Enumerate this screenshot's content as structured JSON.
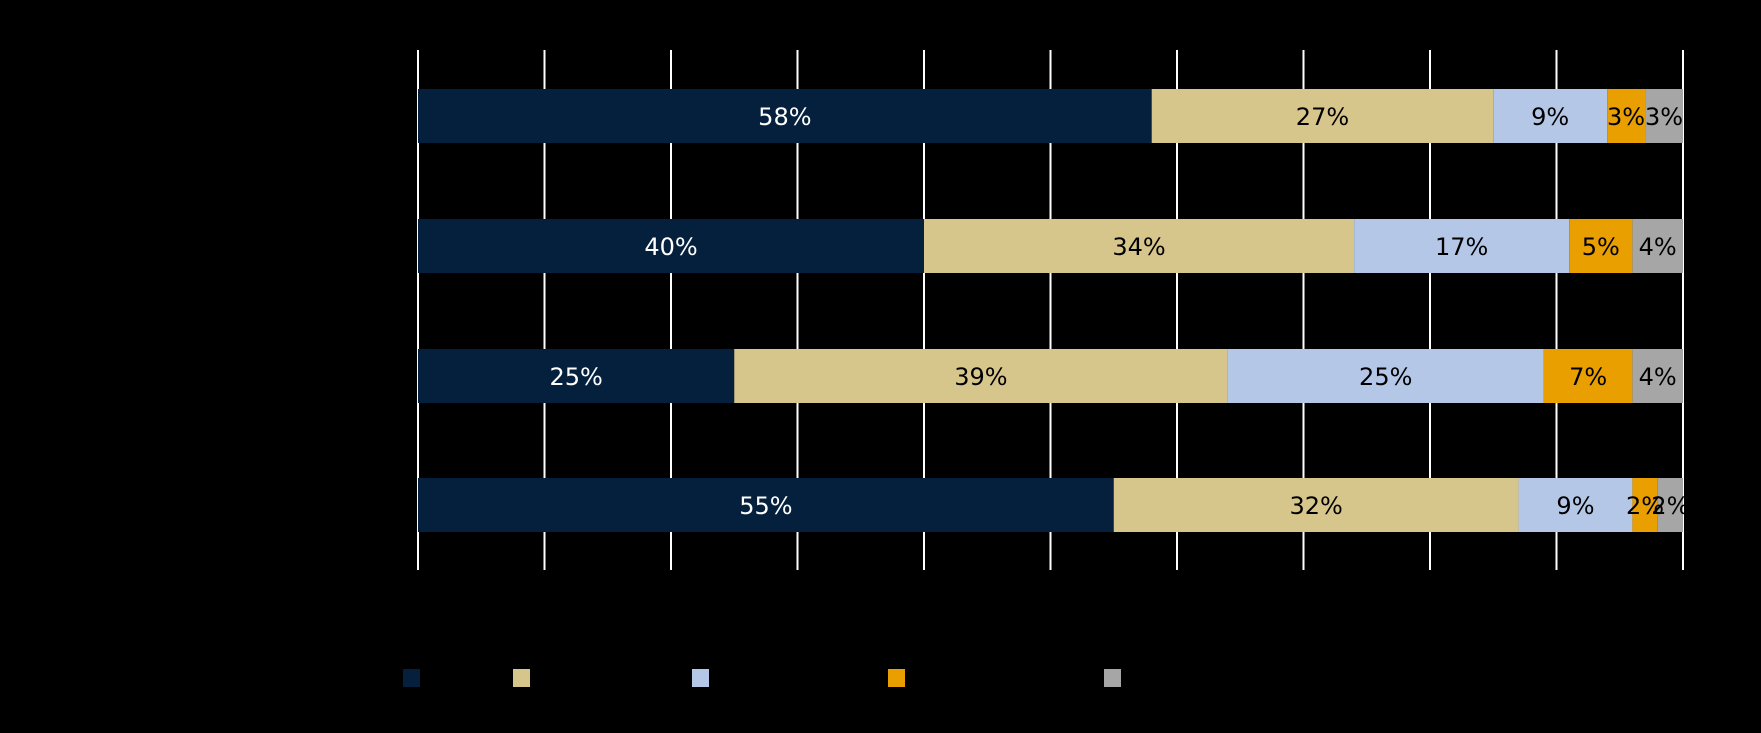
{
  "chart_data": {
    "type": "bar",
    "orientation": "horizontal",
    "stacked": true,
    "categories": [
      "",
      "",
      "",
      ""
    ],
    "series": [
      {
        "values": [
          58,
          40,
          25,
          55
        ],
        "labels": [
          "58%",
          "40%",
          "25%",
          "55%"
        ],
        "color": "#04203D",
        "label_color": "#FFFFFF"
      },
      {
        "values": [
          27,
          34,
          39,
          32
        ],
        "labels": [
          "27%",
          "34%",
          "39%",
          "32%"
        ],
        "color": "#D7C68C",
        "label_color": "#000000"
      },
      {
        "values": [
          9,
          17,
          25,
          9
        ],
        "labels": [
          "9%",
          "17%",
          "25%",
          "9%"
        ],
        "color": "#B4C7E7",
        "label_color": "#000000"
      },
      {
        "values": [
          3,
          5,
          7,
          2
        ],
        "labels": [
          "3%",
          "5%",
          "7%",
          "2%"
        ],
        "color": "#E99F00",
        "label_color": "#000000"
      },
      {
        "values": [
          3,
          4,
          4,
          2
        ],
        "labels": [
          "3%",
          "4%",
          "4%",
          "2%"
        ],
        "color": "#A6A6A6",
        "label_color": "#000000"
      }
    ],
    "xlim": [
      0,
      100
    ],
    "grid": true,
    "gridline_color": "#FFFFFF",
    "legend": {
      "placement": "bottom"
    }
  }
}
